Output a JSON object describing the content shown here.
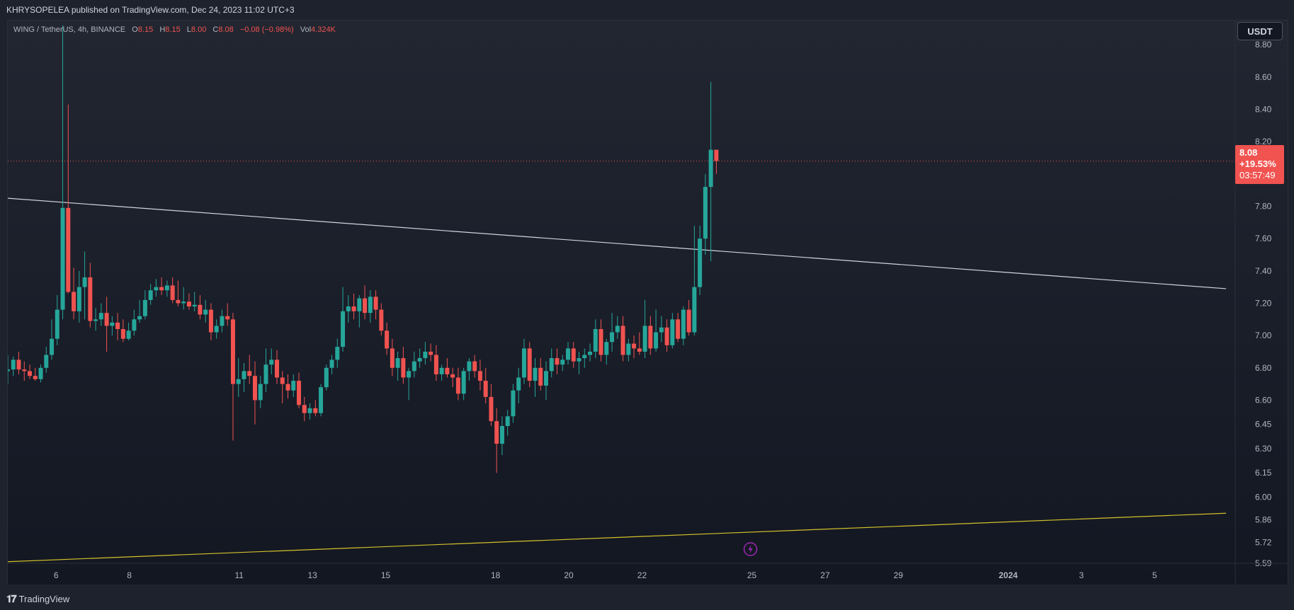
{
  "header": {
    "publisher": "KHRYSOPELEA published on TradingView.com, Dec 24, 2023 11:02 UTC+3"
  },
  "legend": {
    "symbol": "WING / TetherUS, 4h, BINANCE",
    "o_label": "O",
    "o_value": "8.15",
    "h_label": "H",
    "h_value": "8.15",
    "l_label": "L",
    "l_value": "8.00",
    "c_label": "C",
    "c_value": "8.08",
    "change": "−0.08 (−0.98%)",
    "vol_label": "Vol",
    "vol_value": "4.324K"
  },
  "currency": "USDT",
  "last_price": {
    "price": "8.08",
    "change_pct": "+19.53%",
    "countdown": "03:57:49"
  },
  "footer": {
    "brand": "TradingView"
  },
  "colors": {
    "up": "#26a69a",
    "down": "#f05350",
    "trendline": "#d1d4dc",
    "support": "#d4c12a",
    "accent": "#9c27b0"
  },
  "chart_data": {
    "type": "candlestick",
    "symbol": "WING / TetherUS",
    "interval": "4h",
    "y_ticks": [
      5.59,
      5.72,
      5.86,
      6.0,
      6.15,
      6.3,
      6.45,
      6.6,
      6.8,
      7.0,
      7.2,
      7.4,
      7.6,
      7.8,
      8.2,
      8.4,
      8.6,
      8.8
    ],
    "y_tick_labels": [
      "5.59",
      "5.72",
      "5.86",
      "6.00",
      "6.15",
      "6.30",
      "6.45",
      "6.60",
      "6.80",
      "7.00",
      "7.20",
      "7.40",
      "7.60",
      "7.80",
      "8.20",
      "8.40",
      "8.60",
      "8.80"
    ],
    "x_ticks": [
      {
        "label": "6",
        "day": 6
      },
      {
        "label": "8",
        "day": 8
      },
      {
        "label": "11",
        "day": 11
      },
      {
        "label": "13",
        "day": 13
      },
      {
        "label": "15",
        "day": 15
      },
      {
        "label": "18",
        "day": 18
      },
      {
        "label": "20",
        "day": 20
      },
      {
        "label": "22",
        "day": 22
      },
      {
        "label": "25",
        "day": 25
      },
      {
        "label": "27",
        "day": 27
      },
      {
        "label": "29",
        "day": 29
      },
      {
        "label": "2024",
        "day": 32,
        "bold": true
      },
      {
        "label": "3",
        "day": 34
      },
      {
        "label": "5",
        "day": 36
      }
    ],
    "x_range": [
      4.68,
      38.2
    ],
    "y_range": [
      5.59,
      8.95
    ],
    "candles": [
      {
        "t": 4.68,
        "o": 6.78,
        "h": 6.88,
        "l": 6.7,
        "c": 6.79
      },
      {
        "t": 4.83,
        "o": 6.79,
        "h": 6.87,
        "l": 6.75,
        "c": 6.85
      },
      {
        "t": 4.98,
        "o": 6.85,
        "h": 6.9,
        "l": 6.76,
        "c": 6.79
      },
      {
        "t": 5.13,
        "o": 6.79,
        "h": 6.84,
        "l": 6.72,
        "c": 6.78
      },
      {
        "t": 5.28,
        "o": 6.78,
        "h": 6.82,
        "l": 6.73,
        "c": 6.75
      },
      {
        "t": 5.43,
        "o": 6.75,
        "h": 6.8,
        "l": 6.72,
        "c": 6.73
      },
      {
        "t": 5.58,
        "o": 6.73,
        "h": 6.82,
        "l": 6.71,
        "c": 6.8
      },
      {
        "t": 5.73,
        "o": 6.8,
        "h": 6.93,
        "l": 6.77,
        "c": 6.88
      },
      {
        "t": 5.88,
        "o": 6.88,
        "h": 7.1,
        "l": 6.85,
        "c": 6.98
      },
      {
        "t": 6.03,
        "o": 6.98,
        "h": 7.25,
        "l": 6.94,
        "c": 7.16
      },
      {
        "t": 6.18,
        "o": 7.16,
        "h": 8.92,
        "l": 7.1,
        "c": 7.79
      },
      {
        "t": 6.33,
        "o": 7.79,
        "h": 8.43,
        "l": 7.26,
        "c": 7.27
      },
      {
        "t": 6.48,
        "o": 7.27,
        "h": 7.42,
        "l": 7.1,
        "c": 7.15
      },
      {
        "t": 6.63,
        "o": 7.15,
        "h": 7.4,
        "l": 7.08,
        "c": 7.3
      },
      {
        "t": 6.78,
        "o": 7.3,
        "h": 7.52,
        "l": 7.1,
        "c": 7.36
      },
      {
        "t": 6.93,
        "o": 7.36,
        "h": 7.45,
        "l": 7.05,
        "c": 7.09
      },
      {
        "t": 7.08,
        "o": 7.09,
        "h": 7.17,
        "l": 7.03,
        "c": 7.1
      },
      {
        "t": 7.23,
        "o": 7.1,
        "h": 7.2,
        "l": 7.06,
        "c": 7.14
      },
      {
        "t": 7.38,
        "o": 7.14,
        "h": 7.24,
        "l": 6.9,
        "c": 7.06
      },
      {
        "t": 7.53,
        "o": 7.06,
        "h": 7.12,
        "l": 7.0,
        "c": 7.08
      },
      {
        "t": 7.68,
        "o": 7.08,
        "h": 7.14,
        "l": 6.97,
        "c": 7.04
      },
      {
        "t": 7.83,
        "o": 7.04,
        "h": 7.1,
        "l": 6.96,
        "c": 6.98
      },
      {
        "t": 7.98,
        "o": 6.98,
        "h": 7.08,
        "l": 6.97,
        "c": 7.03
      },
      {
        "t": 8.13,
        "o": 7.03,
        "h": 7.16,
        "l": 7.0,
        "c": 7.1
      },
      {
        "t": 8.28,
        "o": 7.1,
        "h": 7.22,
        "l": 7.08,
        "c": 7.12
      },
      {
        "t": 8.43,
        "o": 7.12,
        "h": 7.28,
        "l": 7.1,
        "c": 7.22
      },
      {
        "t": 8.58,
        "o": 7.22,
        "h": 7.32,
        "l": 7.19,
        "c": 7.28
      },
      {
        "t": 8.73,
        "o": 7.28,
        "h": 7.35,
        "l": 7.24,
        "c": 7.3
      },
      {
        "t": 8.88,
        "o": 7.3,
        "h": 7.36,
        "l": 7.25,
        "c": 7.28
      },
      {
        "t": 9.03,
        "o": 7.28,
        "h": 7.34,
        "l": 7.24,
        "c": 7.31
      },
      {
        "t": 9.18,
        "o": 7.31,
        "h": 7.36,
        "l": 7.2,
        "c": 7.22
      },
      {
        "t": 9.33,
        "o": 7.22,
        "h": 7.34,
        "l": 7.18,
        "c": 7.2
      },
      {
        "t": 9.48,
        "o": 7.2,
        "h": 7.3,
        "l": 7.16,
        "c": 7.21
      },
      {
        "t": 9.63,
        "o": 7.21,
        "h": 7.26,
        "l": 7.16,
        "c": 7.18
      },
      {
        "t": 9.78,
        "o": 7.18,
        "h": 7.27,
        "l": 7.15,
        "c": 7.19
      },
      {
        "t": 9.93,
        "o": 7.19,
        "h": 7.25,
        "l": 7.1,
        "c": 7.13
      },
      {
        "t": 10.08,
        "o": 7.13,
        "h": 7.22,
        "l": 7.08,
        "c": 7.16
      },
      {
        "t": 10.23,
        "o": 7.16,
        "h": 7.2,
        "l": 6.97,
        "c": 7.02
      },
      {
        "t": 10.38,
        "o": 7.02,
        "h": 7.1,
        "l": 6.98,
        "c": 7.06
      },
      {
        "t": 10.53,
        "o": 7.06,
        "h": 7.16,
        "l": 7.02,
        "c": 7.12
      },
      {
        "t": 10.68,
        "o": 7.12,
        "h": 7.2,
        "l": 7.06,
        "c": 7.1
      },
      {
        "t": 10.83,
        "o": 7.1,
        "h": 7.14,
        "l": 6.35,
        "c": 6.7
      },
      {
        "t": 10.98,
        "o": 6.7,
        "h": 6.86,
        "l": 6.62,
        "c": 6.73
      },
      {
        "t": 11.13,
        "o": 6.73,
        "h": 6.83,
        "l": 6.65,
        "c": 6.78
      },
      {
        "t": 11.28,
        "o": 6.78,
        "h": 6.88,
        "l": 6.7,
        "c": 6.75
      },
      {
        "t": 11.43,
        "o": 6.75,
        "h": 6.84,
        "l": 6.45,
        "c": 6.6
      },
      {
        "t": 11.58,
        "o": 6.6,
        "h": 6.75,
        "l": 6.55,
        "c": 6.7
      },
      {
        "t": 11.73,
        "o": 6.7,
        "h": 6.92,
        "l": 6.65,
        "c": 6.82
      },
      {
        "t": 11.88,
        "o": 6.82,
        "h": 6.92,
        "l": 6.76,
        "c": 6.85
      },
      {
        "t": 12.03,
        "o": 6.85,
        "h": 6.91,
        "l": 6.7,
        "c": 6.74
      },
      {
        "t": 12.18,
        "o": 6.74,
        "h": 6.78,
        "l": 6.58,
        "c": 6.7
      },
      {
        "t": 12.33,
        "o": 6.7,
        "h": 6.76,
        "l": 6.61,
        "c": 6.66
      },
      {
        "t": 12.48,
        "o": 6.66,
        "h": 6.76,
        "l": 6.62,
        "c": 6.72
      },
      {
        "t": 12.63,
        "o": 6.72,
        "h": 6.77,
        "l": 6.55,
        "c": 6.57
      },
      {
        "t": 12.78,
        "o": 6.57,
        "h": 6.62,
        "l": 6.47,
        "c": 6.52
      },
      {
        "t": 12.93,
        "o": 6.52,
        "h": 6.58,
        "l": 6.48,
        "c": 6.55
      },
      {
        "t": 13.08,
        "o": 6.55,
        "h": 6.6,
        "l": 6.5,
        "c": 6.52
      },
      {
        "t": 13.23,
        "o": 6.52,
        "h": 6.7,
        "l": 6.5,
        "c": 6.68
      },
      {
        "t": 13.38,
        "o": 6.68,
        "h": 6.82,
        "l": 6.66,
        "c": 6.8
      },
      {
        "t": 13.53,
        "o": 6.8,
        "h": 6.88,
        "l": 6.76,
        "c": 6.85
      },
      {
        "t": 13.68,
        "o": 6.85,
        "h": 6.98,
        "l": 6.8,
        "c": 6.93
      },
      {
        "t": 13.83,
        "o": 6.93,
        "h": 7.3,
        "l": 6.9,
        "c": 7.15
      },
      {
        "t": 13.98,
        "o": 7.15,
        "h": 7.25,
        "l": 7.08,
        "c": 7.18
      },
      {
        "t": 14.13,
        "o": 7.18,
        "h": 7.26,
        "l": 7.1,
        "c": 7.15
      },
      {
        "t": 14.28,
        "o": 7.15,
        "h": 7.25,
        "l": 7.05,
        "c": 7.23
      },
      {
        "t": 14.43,
        "o": 7.23,
        "h": 7.31,
        "l": 7.1,
        "c": 7.14
      },
      {
        "t": 14.58,
        "o": 7.14,
        "h": 7.28,
        "l": 7.08,
        "c": 7.24
      },
      {
        "t": 14.73,
        "o": 7.24,
        "h": 7.28,
        "l": 7.1,
        "c": 7.16
      },
      {
        "t": 14.88,
        "o": 7.16,
        "h": 7.2,
        "l": 7.0,
        "c": 7.03
      },
      {
        "t": 15.03,
        "o": 7.03,
        "h": 7.08,
        "l": 6.88,
        "c": 6.92
      },
      {
        "t": 15.18,
        "o": 6.92,
        "h": 6.98,
        "l": 6.75,
        "c": 6.8
      },
      {
        "t": 15.33,
        "o": 6.8,
        "h": 6.9,
        "l": 6.72,
        "c": 6.86
      },
      {
        "t": 15.48,
        "o": 6.86,
        "h": 6.93,
        "l": 6.7,
        "c": 6.74
      },
      {
        "t": 15.63,
        "o": 6.74,
        "h": 6.8,
        "l": 6.6,
        "c": 6.78
      },
      {
        "t": 15.78,
        "o": 6.78,
        "h": 6.9,
        "l": 6.74,
        "c": 6.84
      },
      {
        "t": 15.93,
        "o": 6.84,
        "h": 6.92,
        "l": 6.8,
        "c": 6.86
      },
      {
        "t": 16.08,
        "o": 6.86,
        "h": 6.96,
        "l": 6.82,
        "c": 6.9
      },
      {
        "t": 16.23,
        "o": 6.9,
        "h": 6.95,
        "l": 6.84,
        "c": 6.88
      },
      {
        "t": 16.38,
        "o": 6.88,
        "h": 6.94,
        "l": 6.72,
        "c": 6.76
      },
      {
        "t": 16.53,
        "o": 6.76,
        "h": 6.82,
        "l": 6.72,
        "c": 6.8
      },
      {
        "t": 16.68,
        "o": 6.8,
        "h": 6.86,
        "l": 6.74,
        "c": 6.76
      },
      {
        "t": 16.83,
        "o": 6.76,
        "h": 6.8,
        "l": 6.68,
        "c": 6.74
      },
      {
        "t": 16.98,
        "o": 6.74,
        "h": 6.8,
        "l": 6.6,
        "c": 6.64
      },
      {
        "t": 17.13,
        "o": 6.64,
        "h": 6.8,
        "l": 6.6,
        "c": 6.78
      },
      {
        "t": 17.28,
        "o": 6.78,
        "h": 6.86,
        "l": 6.72,
        "c": 6.84
      },
      {
        "t": 17.43,
        "o": 6.84,
        "h": 6.88,
        "l": 6.74,
        "c": 6.78
      },
      {
        "t": 17.58,
        "o": 6.78,
        "h": 6.85,
        "l": 6.66,
        "c": 6.72
      },
      {
        "t": 17.73,
        "o": 6.72,
        "h": 6.8,
        "l": 6.58,
        "c": 6.62
      },
      {
        "t": 17.88,
        "o": 6.62,
        "h": 6.7,
        "l": 6.44,
        "c": 6.47
      },
      {
        "t": 18.03,
        "o": 6.47,
        "h": 6.55,
        "l": 6.15,
        "c": 6.33
      },
      {
        "t": 18.18,
        "o": 6.33,
        "h": 6.5,
        "l": 6.26,
        "c": 6.44
      },
      {
        "t": 18.33,
        "o": 6.44,
        "h": 6.54,
        "l": 6.38,
        "c": 6.5
      },
      {
        "t": 18.48,
        "o": 6.5,
        "h": 6.7,
        "l": 6.46,
        "c": 6.66
      },
      {
        "t": 18.63,
        "o": 6.66,
        "h": 6.8,
        "l": 6.58,
        "c": 6.74
      },
      {
        "t": 18.78,
        "o": 6.74,
        "h": 6.98,
        "l": 6.7,
        "c": 6.92
      },
      {
        "t": 18.93,
        "o": 6.92,
        "h": 6.96,
        "l": 6.68,
        "c": 6.72
      },
      {
        "t": 19.08,
        "o": 6.72,
        "h": 6.86,
        "l": 6.62,
        "c": 6.8
      },
      {
        "t": 19.23,
        "o": 6.8,
        "h": 6.86,
        "l": 6.66,
        "c": 6.69
      },
      {
        "t": 19.38,
        "o": 6.69,
        "h": 6.84,
        "l": 6.6,
        "c": 6.78
      },
      {
        "t": 19.53,
        "o": 6.78,
        "h": 6.92,
        "l": 6.74,
        "c": 6.86
      },
      {
        "t": 19.68,
        "o": 6.86,
        "h": 6.92,
        "l": 6.76,
        "c": 6.82
      },
      {
        "t": 19.83,
        "o": 6.82,
        "h": 6.88,
        "l": 6.78,
        "c": 6.85
      },
      {
        "t": 19.98,
        "o": 6.85,
        "h": 6.96,
        "l": 6.82,
        "c": 6.92
      },
      {
        "t": 20.13,
        "o": 6.92,
        "h": 6.96,
        "l": 6.8,
        "c": 6.84
      },
      {
        "t": 20.28,
        "o": 6.84,
        "h": 6.9,
        "l": 6.76,
        "c": 6.86
      },
      {
        "t": 20.43,
        "o": 6.86,
        "h": 6.92,
        "l": 6.8,
        "c": 6.88
      },
      {
        "t": 20.58,
        "o": 6.88,
        "h": 6.95,
        "l": 6.84,
        "c": 6.9
      },
      {
        "t": 20.73,
        "o": 6.9,
        "h": 7.1,
        "l": 6.86,
        "c": 7.04
      },
      {
        "t": 20.88,
        "o": 7.04,
        "h": 7.1,
        "l": 6.84,
        "c": 6.88
      },
      {
        "t": 21.03,
        "o": 6.88,
        "h": 6.98,
        "l": 6.82,
        "c": 6.96
      },
      {
        "t": 21.18,
        "o": 6.96,
        "h": 7.14,
        "l": 6.9,
        "c": 7.02
      },
      {
        "t": 21.33,
        "o": 7.02,
        "h": 7.12,
        "l": 6.98,
        "c": 7.06
      },
      {
        "t": 21.48,
        "o": 7.06,
        "h": 7.12,
        "l": 6.84,
        "c": 6.88
      },
      {
        "t": 21.63,
        "o": 6.88,
        "h": 6.98,
        "l": 6.84,
        "c": 6.95
      },
      {
        "t": 21.78,
        "o": 6.95,
        "h": 7.0,
        "l": 6.86,
        "c": 6.92
      },
      {
        "t": 21.93,
        "o": 6.92,
        "h": 7.02,
        "l": 6.88,
        "c": 6.9
      },
      {
        "t": 22.08,
        "o": 6.9,
        "h": 7.22,
        "l": 6.86,
        "c": 7.06
      },
      {
        "t": 22.23,
        "o": 7.06,
        "h": 7.12,
        "l": 6.88,
        "c": 6.92
      },
      {
        "t": 22.38,
        "o": 6.92,
        "h": 7.16,
        "l": 6.9,
        "c": 7.02
      },
      {
        "t": 22.53,
        "o": 7.02,
        "h": 7.12,
        "l": 6.96,
        "c": 7.05
      },
      {
        "t": 22.68,
        "o": 7.05,
        "h": 7.1,
        "l": 6.9,
        "c": 6.94
      },
      {
        "t": 22.83,
        "o": 6.94,
        "h": 7.14,
        "l": 6.92,
        "c": 7.1
      },
      {
        "t": 22.98,
        "o": 7.1,
        "h": 7.14,
        "l": 6.96,
        "c": 6.98
      },
      {
        "t": 23.13,
        "o": 6.98,
        "h": 7.18,
        "l": 6.94,
        "c": 7.16
      },
      {
        "t": 23.28,
        "o": 7.16,
        "h": 7.22,
        "l": 7.0,
        "c": 7.02
      },
      {
        "t": 23.43,
        "o": 7.02,
        "h": 7.68,
        "l": 7.0,
        "c": 7.3
      },
      {
        "t": 23.58,
        "o": 7.3,
        "h": 7.68,
        "l": 7.25,
        "c": 7.6
      },
      {
        "t": 23.73,
        "o": 7.6,
        "h": 8.0,
        "l": 7.5,
        "c": 7.92
      },
      {
        "t": 23.88,
        "o": 7.92,
        "h": 8.57,
        "l": 7.46,
        "c": 8.15
      },
      {
        "t": 24.03,
        "o": 8.15,
        "h": 8.15,
        "l": 8.0,
        "c": 8.08
      }
    ],
    "trendlines": [
      {
        "name": "descending resistance",
        "x": [
          4.68,
          37.95
        ],
        "y": [
          7.85,
          7.29
        ],
        "color": "#d1d4dc"
      },
      {
        "name": "ascending support",
        "x": [
          4.68,
          37.95
        ],
        "y": [
          5.6,
          5.9
        ],
        "color": "#d4c12a"
      }
    ],
    "last_price_line": 8.08
  }
}
